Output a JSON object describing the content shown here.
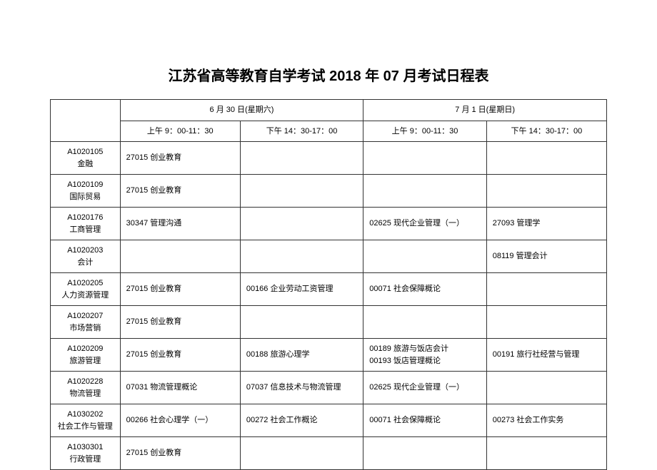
{
  "title": "江苏省高等教育自学考试 2018 年 07 月考试日程表",
  "days": [
    {
      "label": "6 月 30 日(星期六)",
      "slots": [
        "上午 9：00-11：30",
        "下午 14：30-17：00"
      ]
    },
    {
      "label": "7 月 1 日(星期日)",
      "slots": [
        "上午 9：00-11：30",
        "下午 14：30-17：00"
      ]
    }
  ],
  "rows": [
    {
      "code": "A1020105",
      "name": "金融",
      "cells": [
        [
          "27015  创业教育"
        ],
        [],
        [],
        []
      ]
    },
    {
      "code": "A1020109",
      "name": "国际贸易",
      "cells": [
        [
          "27015  创业教育"
        ],
        [],
        [],
        []
      ]
    },
    {
      "code": "A1020176",
      "name": "工商管理",
      "cells": [
        [
          "30347  管理沟通"
        ],
        [],
        [
          "02625  现代企业管理（一）"
        ],
        [
          "27093  管理学"
        ]
      ]
    },
    {
      "code": "A1020203",
      "name": "会计",
      "cells": [
        [],
        [],
        [],
        [
          "08119  管理会计"
        ]
      ]
    },
    {
      "code": "A1020205",
      "name": "人力资源管理",
      "cells": [
        [
          "27015  创业教育"
        ],
        [
          "00166  企业劳动工资管理"
        ],
        [
          "00071  社会保障概论"
        ],
        []
      ]
    },
    {
      "code": "A1020207",
      "name": "市场营销",
      "cells": [
        [
          "27015  创业教育"
        ],
        [],
        [],
        []
      ]
    },
    {
      "code": "A1020209",
      "name": "旅游管理",
      "cells": [
        [
          "27015  创业教育"
        ],
        [
          "00188  旅游心理学"
        ],
        [
          "00189  旅游与饭店会计",
          "00193  饭店管理概论"
        ],
        [
          "00191  旅行社经营与管理"
        ]
      ]
    },
    {
      "code": "A1020228",
      "name": "物流管理",
      "cells": [
        [
          "07031  物流管理概论"
        ],
        [
          "07037  信息技术与物流管理"
        ],
        [
          "02625  现代企业管理（一）"
        ],
        []
      ]
    },
    {
      "code": "A1030202",
      "name": "社会工作与管理",
      "cells": [
        [
          "00266  社会心理学（一）"
        ],
        [
          "00272  社会工作概论"
        ],
        [
          "00071  社会保障概论"
        ],
        [
          "00273  社会工作实务"
        ]
      ]
    },
    {
      "code": "A1030301",
      "name": "行政管理",
      "cells": [
        [
          "27015  创业教育"
        ],
        [],
        [],
        []
      ]
    }
  ]
}
